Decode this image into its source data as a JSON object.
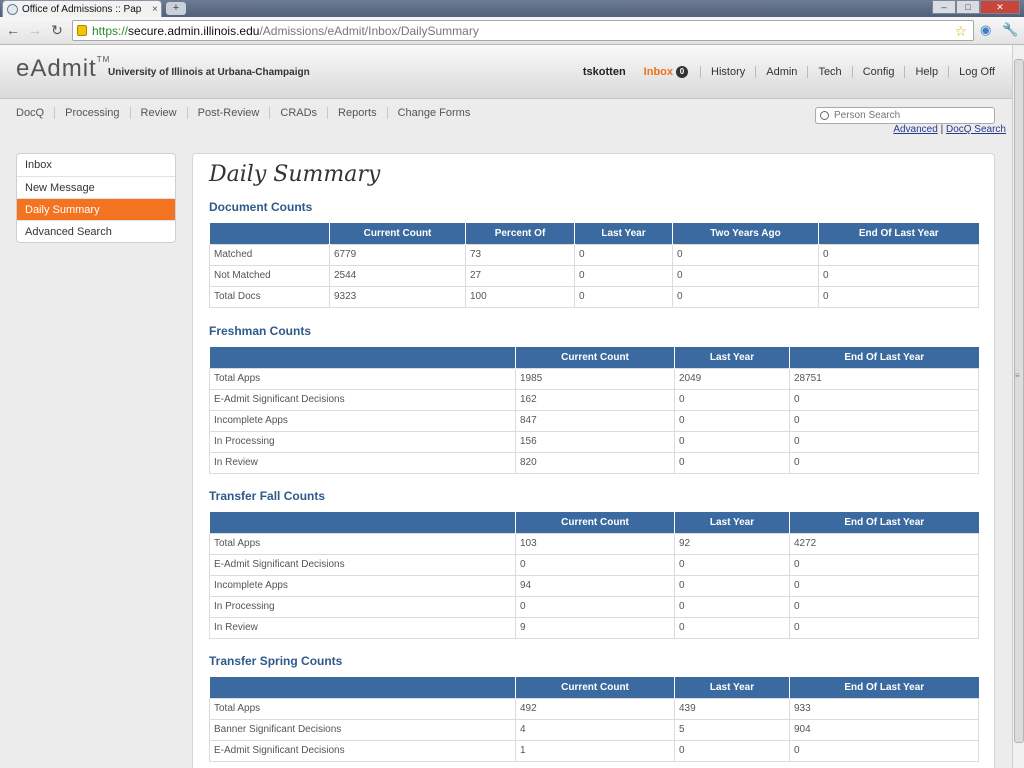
{
  "browser": {
    "tab_title": "Office of Admissions :: Pap",
    "tab_close": "×",
    "new_tab": "+",
    "url_scheme": "https://",
    "url_host": "secure.admin.illinois.edu",
    "url_path": "/Admissions/eAdmit/Inbox/DailySummary",
    "window_controls": [
      "–",
      "□",
      "✕"
    ],
    "icons": [
      "back-icon",
      "forward-icon",
      "reload-icon",
      "lock-icon",
      "star-icon",
      "extension-icon",
      "wrench-icon"
    ]
  },
  "header": {
    "logo": "eAdmit",
    "logo_tm": "TM",
    "university": "University of Illinois at Urbana-Champaign",
    "user": "tskotten",
    "inbox_label": "Inbox",
    "inbox_count": "0",
    "links": [
      "History",
      "Admin",
      "Tech",
      "Config",
      "Help",
      "Log Off"
    ]
  },
  "subnav": {
    "items": [
      "DocQ",
      "Processing",
      "Review",
      "Post-Review",
      "CRADs",
      "Reports",
      "Change Forms"
    ],
    "search_placeholder": "Person Search",
    "advanced_link": "Advanced",
    "separator": "|",
    "docq_search_link": "DocQ Search"
  },
  "sidemenu": {
    "items": [
      "Inbox",
      "New Message",
      "Daily Summary",
      "Advanced Search"
    ],
    "active": "Daily Summary"
  },
  "main": {
    "title": "Daily Summary",
    "sections": [
      {
        "title": "Document Counts",
        "headers": [
          "",
          "Current Count",
          "Percent Of",
          "Last Year",
          "Two Years Ago",
          "End Of Last Year"
        ],
        "rows": [
          [
            "Matched",
            "6779",
            "73",
            "0",
            "0",
            "0"
          ],
          [
            "Not Matched",
            "2544",
            "27",
            "0",
            "0",
            "0"
          ],
          [
            "Total Docs",
            "9323",
            "100",
            "0",
            "0",
            "0"
          ]
        ]
      },
      {
        "title": "Freshman Counts",
        "headers": [
          "",
          "Current Count",
          "Last Year",
          "End Of Last Year"
        ],
        "rows": [
          [
            "Total Apps",
            "1985",
            "2049",
            "28751"
          ],
          [
            "E-Admit Significant Decisions",
            "162",
            "0",
            "0"
          ],
          [
            "Incomplete Apps",
            "847",
            "0",
            "0"
          ],
          [
            "In Processing",
            "156",
            "0",
            "0"
          ],
          [
            "In Review",
            "820",
            "0",
            "0"
          ]
        ]
      },
      {
        "title": "Transfer Fall Counts",
        "headers": [
          "",
          "Current Count",
          "Last Year",
          "End Of Last Year"
        ],
        "rows": [
          [
            "Total Apps",
            "103",
            "92",
            "4272"
          ],
          [
            "E-Admit Significant Decisions",
            "0",
            "0",
            "0"
          ],
          [
            "Incomplete Apps",
            "94",
            "0",
            "0"
          ],
          [
            "In Processing",
            "0",
            "0",
            "0"
          ],
          [
            "In Review",
            "9",
            "0",
            "0"
          ]
        ]
      },
      {
        "title": "Transfer Spring Counts",
        "headers": [
          "",
          "Current Count",
          "Last Year",
          "End Of Last Year"
        ],
        "rows": [
          [
            "Total Apps",
            "492",
            "439",
            "933"
          ],
          [
            "Banner Significant Decisions",
            "4",
            "5",
            "904"
          ],
          [
            "E-Admit Significant Decisions",
            "1",
            "0",
            "0"
          ]
        ]
      }
    ]
  },
  "colors": {
    "accent_orange": "#f37321",
    "table_header_blue": "#3a6aa0",
    "section_title_blue": "#2f5a8c"
  }
}
